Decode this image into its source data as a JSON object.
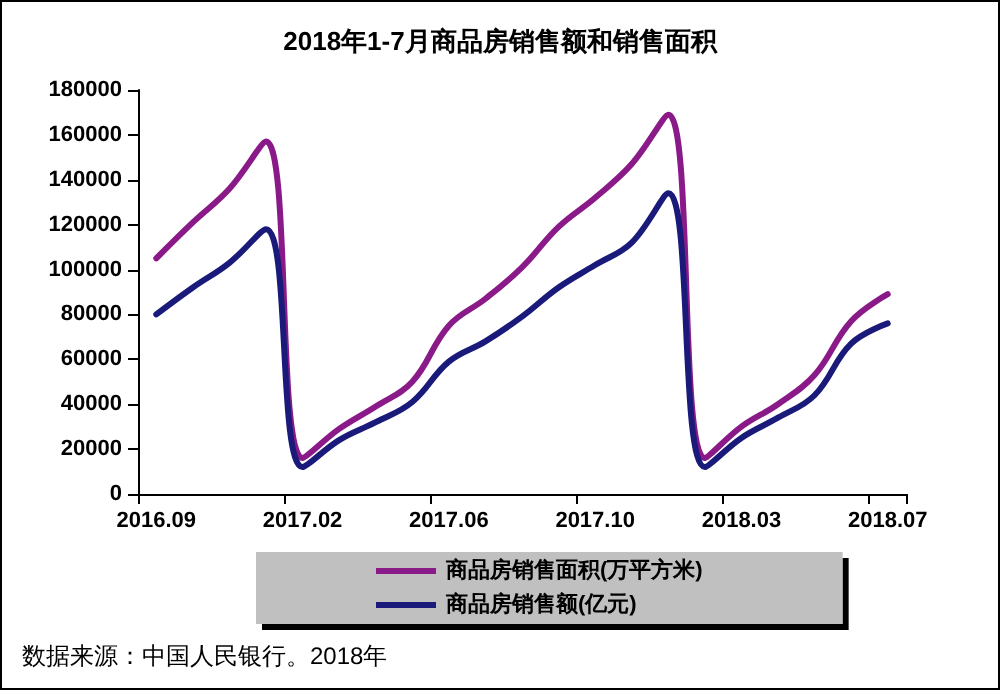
{
  "chart_data": {
    "type": "line",
    "title": "2018年1-7月商品房销售额和销售面积",
    "categories": [
      "2016.09",
      null,
      null,
      null,
      "2017.02",
      null,
      null,
      null,
      "2017.06",
      null,
      null,
      null,
      "2017.10",
      null,
      null,
      null,
      "2018.03",
      null,
      null,
      null,
      "2018.07"
    ],
    "series": [
      {
        "name": "商品房销售面积(万平方米)",
        "color": "#8b1a89",
        "values": [
          105000,
          121000,
          136000,
          157000,
          16000,
          29000,
          39000,
          50000,
          75000,
          87000,
          101000,
          119000,
          132000,
          147000,
          169000,
          16000,
          30000,
          40000,
          53000,
          77000,
          89000
        ]
      },
      {
        "name": "商品房销售额(亿元)",
        "color": "#1a1a7a",
        "values": [
          80000,
          92000,
          103000,
          118000,
          12000,
          24000,
          32000,
          41000,
          59000,
          68000,
          79000,
          92000,
          102000,
          112000,
          134000,
          12000,
          25000,
          34000,
          44000,
          67000,
          76000
        ]
      }
    ],
    "ylim": [
      0,
      180000
    ],
    "yticks": [
      0,
      20000,
      40000,
      60000,
      80000,
      100000,
      120000,
      140000,
      160000,
      180000
    ],
    "grid": false,
    "legend": "bottom",
    "marker": "none",
    "line_style": "solid",
    "annotations": [
      "数据来源：中国人民银行。2018年"
    ]
  }
}
